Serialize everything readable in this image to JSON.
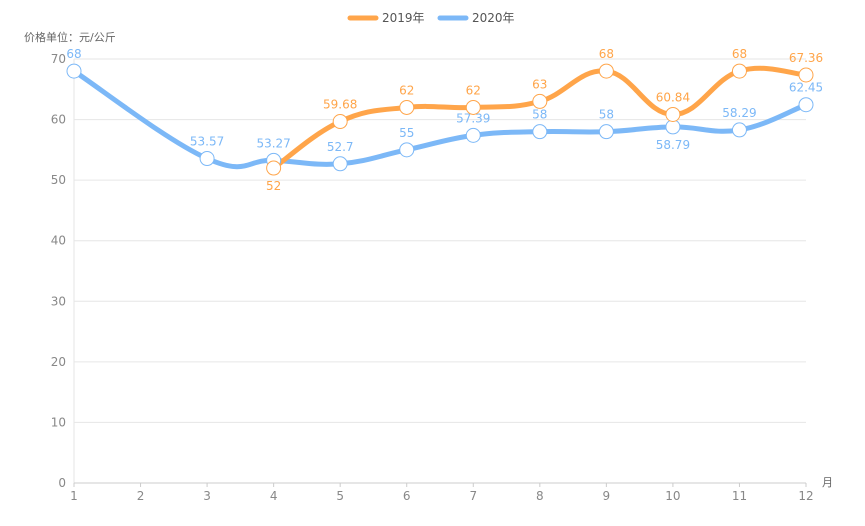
{
  "chart_data": {
    "type": "line",
    "title": "",
    "ylabel": "价格单位：元/公斤",
    "xlabel": "月",
    "categories": [
      "1",
      "2",
      "3",
      "4",
      "5",
      "6",
      "7",
      "8",
      "9",
      "10",
      "11",
      "12"
    ],
    "ylim": [
      0,
      70
    ],
    "yticks": [
      "0",
      "10",
      "20",
      "30",
      "40",
      "50",
      "60",
      "70"
    ],
    "grid": true,
    "legend": "top-center",
    "series": [
      {
        "name": "2019年",
        "color": "#ffa54a",
        "values": [
          null,
          null,
          null,
          52,
          59.68,
          62,
          62,
          63,
          68,
          60.84,
          68,
          67.36
        ],
        "labels": [
          "",
          "",
          "",
          "52",
          "59.68",
          "62",
          "62",
          "63",
          "68",
          "60.84",
          "68",
          "67.36"
        ]
      },
      {
        "name": "2020年",
        "color": "#7cb8f7",
        "values": [
          68,
          null,
          53.57,
          53.27,
          52.7,
          55,
          57.39,
          58,
          58,
          58.79,
          58.29,
          62.45
        ],
        "labels": [
          "68",
          "",
          "53.57",
          "53.27",
          "52.7",
          "55",
          "57.39",
          "58",
          "58",
          "58.79",
          "58.29",
          "62.45"
        ]
      }
    ]
  }
}
